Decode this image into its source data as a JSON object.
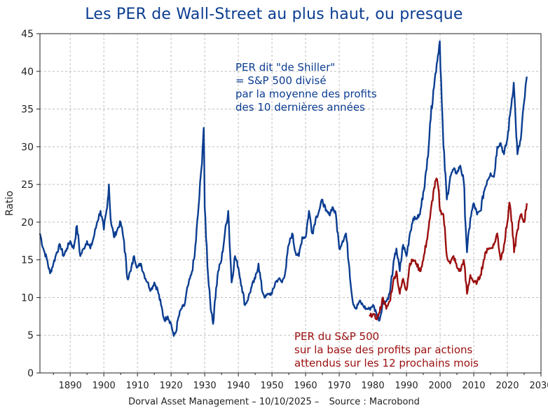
{
  "title": "Les PER de Wall-Street au plus haut, ou presque",
  "footer": {
    "source_left": "Dorval Asset Management – 10/10/2025 –",
    "source_right": "Source : Macrobond"
  },
  "annotations": {
    "shiller": [
      "PER dit \"de Shiller\"",
      "= S&P 500 divisé",
      "par la moyenne des profits",
      "des 10 dernières années"
    ],
    "forward": [
      "PER du S&P 500",
      "sur la base des profits par actions",
      "attendus sur les 12 prochains mois"
    ]
  },
  "colors": {
    "shiller": "#0b3d91",
    "forward": "#9b0f0f",
    "grid": "#bdbdbd"
  },
  "chart_data": {
    "type": "line",
    "title": "Les PER de Wall-Street au plus haut, ou presque",
    "xlabel": "",
    "ylabel": "Ratio",
    "xlim": [
      1881,
      2030
    ],
    "ylim": [
      0,
      45
    ],
    "xticks": [
      1890,
      1900,
      1910,
      1920,
      1930,
      1940,
      1950,
      1960,
      1970,
      1980,
      1990,
      2000,
      2010,
      2020,
      2030
    ],
    "yticks": [
      0,
      5,
      10,
      15,
      20,
      25,
      30,
      35,
      40,
      45
    ],
    "grid": true,
    "series": [
      {
        "name": "PER dit \"de Shiller\" = S&P 500 divisé par la moyenne des profits des 10 dernières années",
        "color": "#0b3d91",
        "x": [
          1881,
          1882,
          1883,
          1884,
          1885,
          1886,
          1887,
          1888,
          1889,
          1890,
          1891,
          1892,
          1893,
          1894,
          1895,
          1896,
          1897,
          1898,
          1899,
          1900,
          1901,
          1901.5,
          1902,
          1903,
          1904,
          1905,
          1906,
          1907,
          1908,
          1909,
          1910,
          1911,
          1912,
          1913,
          1914,
          1915,
          1916,
          1917,
          1918,
          1919,
          1920,
          1920.8,
          1921.5,
          1922,
          1923,
          1924,
          1925,
          1926,
          1927,
          1928,
          1929,
          1929.7,
          1930,
          1931,
          1932,
          1932.5,
          1933,
          1934,
          1935,
          1936,
          1937,
          1938,
          1939,
          1940,
          1941,
          1942,
          1943,
          1944,
          1945,
          1946,
          1947,
          1948,
          1949,
          1950,
          1951,
          1952,
          1953,
          1954,
          1955,
          1956,
          1957,
          1958,
          1959,
          1960,
          1961,
          1962,
          1963,
          1964,
          1965,
          1966,
          1967,
          1968,
          1969,
          1970,
          1971,
          1972,
          1973,
          1974,
          1975,
          1976,
          1977,
          1978,
          1979,
          1980,
          1981,
          1982,
          1983,
          1984,
          1985,
          1986,
          1987,
          1988,
          1989,
          1990,
          1991,
          1992,
          1993,
          1994,
          1995,
          1996,
          1997,
          1998,
          1999,
          1999.9,
          2000.5,
          2001,
          2002,
          2003,
          2004,
          2005,
          2006,
          2007,
          2008,
          2009,
          2010,
          2011,
          2012,
          2013,
          2014,
          2015,
          2016,
          2017,
          2018,
          2019,
          2020,
          2021,
          2021.9,
          2022.5,
          2023,
          2024,
          2025,
          2025.8
        ],
        "values": [
          18.5,
          16.5,
          15.2,
          13.2,
          14.5,
          16.0,
          17.0,
          15.5,
          16.5,
          17.5,
          16.5,
          19.5,
          15.5,
          16.5,
          17.5,
          16.5,
          18.0,
          20.0,
          21.5,
          19.0,
          22.0,
          25.0,
          20.5,
          18.0,
          19.0,
          20.0,
          17.5,
          12.5,
          13.5,
          15.5,
          14.0,
          14.5,
          13.0,
          12.0,
          11.0,
          12.0,
          11.0,
          9.0,
          7.0,
          7.5,
          6.5,
          4.9,
          5.5,
          7.0,
          8.5,
          9.0,
          11.5,
          13.0,
          15.5,
          21.0,
          27.0,
          32.5,
          22.0,
          13.0,
          8.0,
          6.5,
          9.5,
          13.5,
          15.0,
          18.5,
          21.5,
          12.0,
          15.5,
          14.0,
          11.5,
          9.0,
          10.0,
          11.5,
          12.5,
          14.5,
          11.0,
          10.0,
          10.5,
          10.5,
          12.0,
          12.5,
          12.0,
          13.5,
          17.0,
          18.5,
          16.0,
          15.5,
          18.0,
          18.0,
          21.5,
          18.5,
          20.5,
          21.5,
          23.0,
          21.5,
          21.0,
          22.0,
          21.0,
          16.5,
          17.5,
          18.5,
          14.0,
          9.5,
          8.5,
          9.5,
          9.0,
          8.5,
          8.5,
          9.0,
          8.0,
          7.0,
          9.5,
          9.5,
          10.5,
          14.0,
          16.5,
          13.5,
          17.0,
          15.5,
          18.5,
          20.5,
          20.5,
          21.0,
          24.0,
          27.0,
          33.0,
          37.5,
          41.0,
          44.0,
          36.0,
          30.0,
          23.0,
          26.0,
          27.0,
          26.5,
          27.5,
          25.5,
          16.0,
          20.5,
          22.5,
          21.0,
          21.5,
          24.0,
          25.5,
          26.5,
          26.0,
          30.0,
          30.5,
          29.0,
          31.0,
          35.0,
          38.5,
          33.0,
          29.0,
          31.0,
          36.0,
          39.3
        ]
      },
      {
        "name": "PER du S&P 500 sur la base des profits par actions attendus sur les 12 prochains mois",
        "color": "#9b0f0f",
        "x": [
          1979,
          1980,
          1981,
          1982,
          1983,
          1984,
          1985,
          1986,
          1987,
          1988,
          1989,
          1990,
          1991,
          1992,
          1993,
          1994,
          1995,
          1996,
          1997,
          1998,
          1998.9,
          1999.5,
          2000,
          2001,
          2002,
          2003,
          2004,
          2005,
          2006,
          2007,
          2008,
          2009,
          2010,
          2011,
          2012,
          2013,
          2014,
          2015,
          2016,
          2017,
          2018,
          2019,
          2020,
          2020.6,
          2021,
          2022,
          2023,
          2024,
          2025,
          2025.8
        ],
        "values": [
          7.5,
          7.8,
          7.2,
          8.0,
          10.0,
          8.5,
          9.5,
          12.0,
          13.5,
          10.5,
          12.5,
          11.0,
          14.5,
          15.0,
          14.5,
          13.5,
          15.0,
          17.5,
          20.5,
          24.0,
          25.8,
          24.5,
          21.5,
          21.0,
          15.5,
          14.5,
          15.5,
          14.0,
          13.5,
          15.0,
          10.5,
          13.0,
          12.0,
          12.0,
          13.0,
          15.0,
          16.5,
          16.5,
          17.0,
          18.5,
          15.0,
          17.0,
          20.0,
          22.6,
          21.5,
          16.0,
          19.0,
          21.0,
          20.0,
          22.5
        ]
      }
    ]
  }
}
